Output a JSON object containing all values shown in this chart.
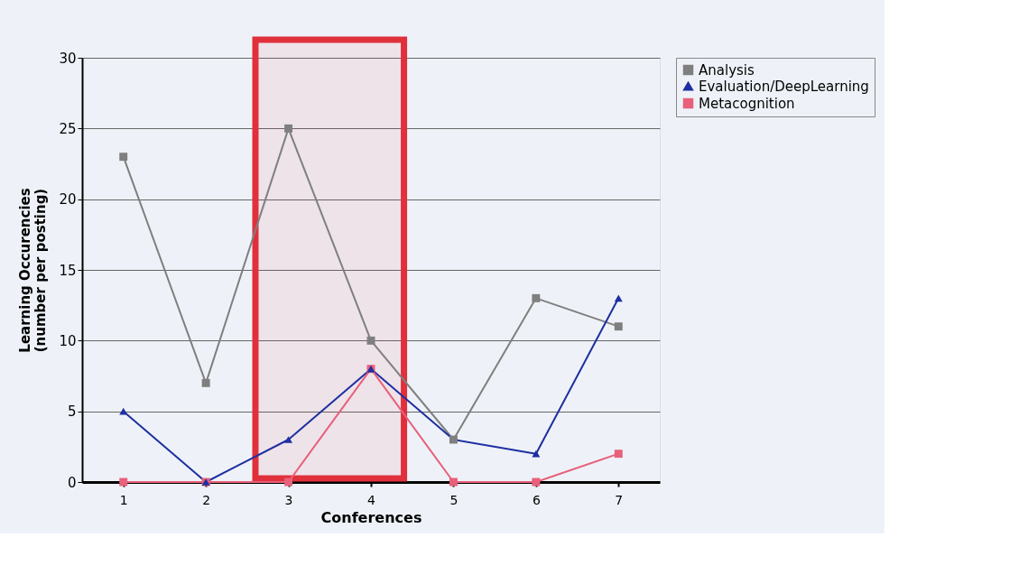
{
  "chart_data": {
    "type": "line",
    "xlabel": "Conferences",
    "ylabel": "Learning Occurencies\n(number per posting)",
    "categories": [
      "1",
      "2",
      "3",
      "4",
      "5",
      "6",
      "7"
    ],
    "ylim": [
      0,
      30
    ],
    "yticks": [
      0,
      5,
      10,
      15,
      20,
      25,
      30
    ],
    "grid": "y",
    "legend": "right",
    "line_style": "solid",
    "series": [
      {
        "name": "Analysis",
        "color": "#7f7f7f",
        "marker": "square",
        "values": [
          23,
          7,
          25,
          10,
          3,
          13,
          11
        ]
      },
      {
        "name": "Evaluation/DeepLearning",
        "color": "#1f2fa0",
        "marker": "triangle",
        "values": [
          5,
          0,
          3,
          8,
          3,
          2,
          13
        ]
      },
      {
        "name": "Metacognition",
        "color": "#e8607a",
        "marker": "square",
        "values": [
          0,
          0,
          0,
          8,
          0,
          0,
          2
        ]
      }
    ],
    "bands": [
      {
        "axis": "x",
        "from": "3",
        "to": "4",
        "color": "#e0303c"
      }
    ]
  }
}
